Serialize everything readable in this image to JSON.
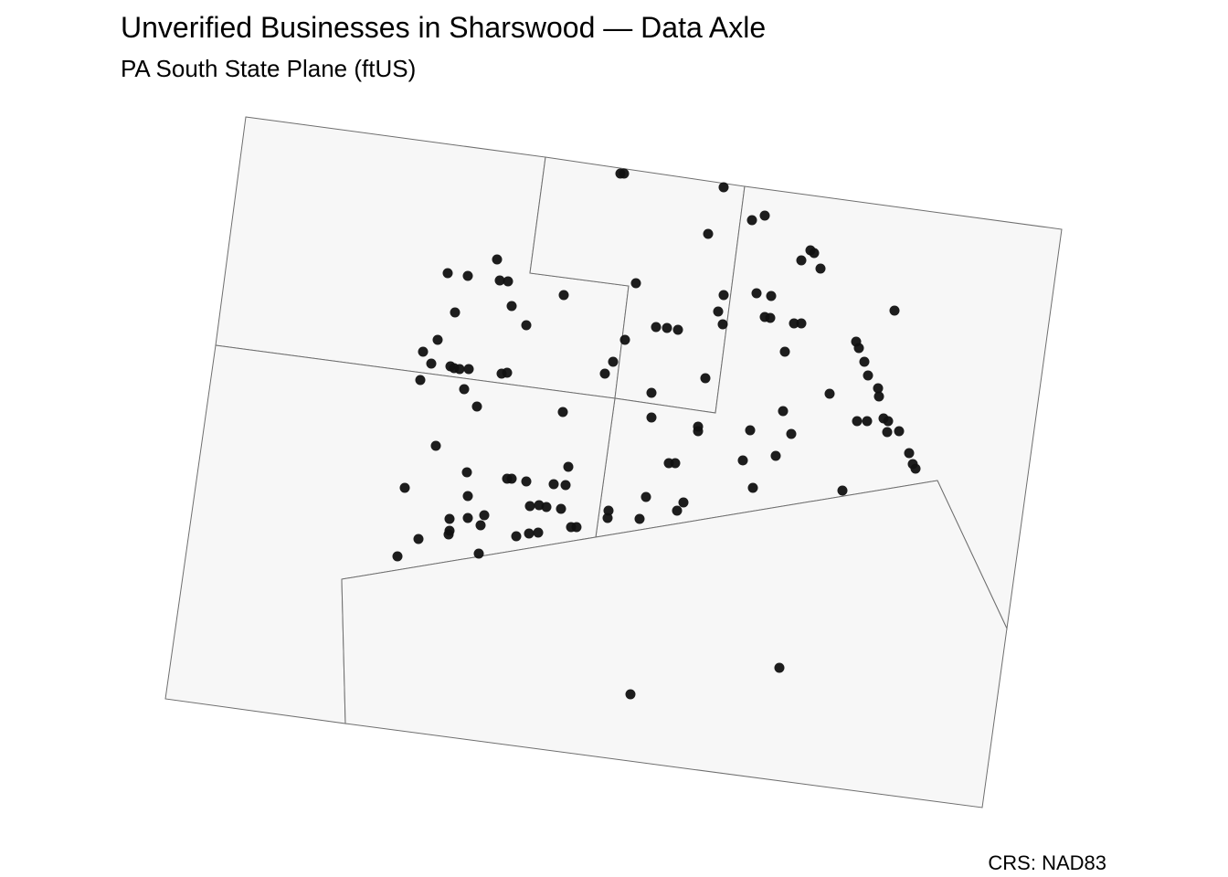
{
  "title": "Unverified Businesses in Sharswood — Data Axle",
  "subtitle": "PA South State Plane (ftUS)",
  "caption": "CRS: NAD83",
  "colors": {
    "point": "#111111",
    "tract_fill": "#f7f7f7",
    "tract_stroke": "#6e6e6e"
  },
  "map": {
    "point_count": 130,
    "tract_count": 5
  }
}
